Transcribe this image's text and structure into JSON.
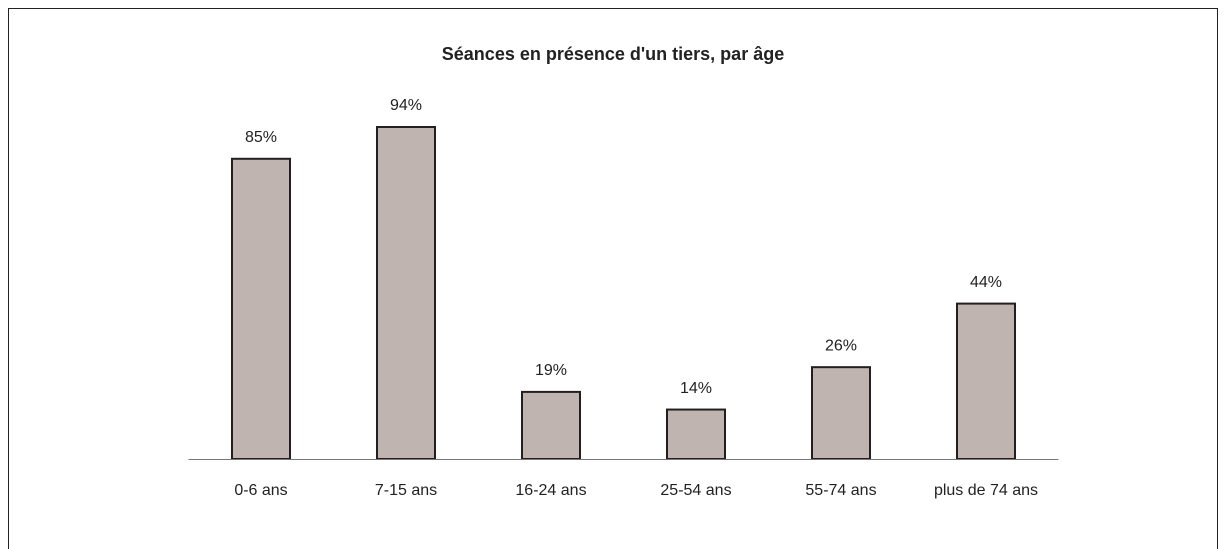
{
  "chart_data": {
    "type": "bar",
    "title": "Séances en présence d'un tiers, par âge",
    "categories": [
      "0-6 ans",
      "7-15 ans",
      "16-24 ans",
      "25-54 ans",
      "55-74 ans",
      "plus de 74 ans"
    ],
    "values": [
      85,
      94,
      19,
      14,
      26,
      44
    ],
    "value_labels": [
      "85%",
      "94%",
      "19%",
      "14%",
      "26%",
      "44%"
    ],
    "color": "#bfb4b0"
  }
}
